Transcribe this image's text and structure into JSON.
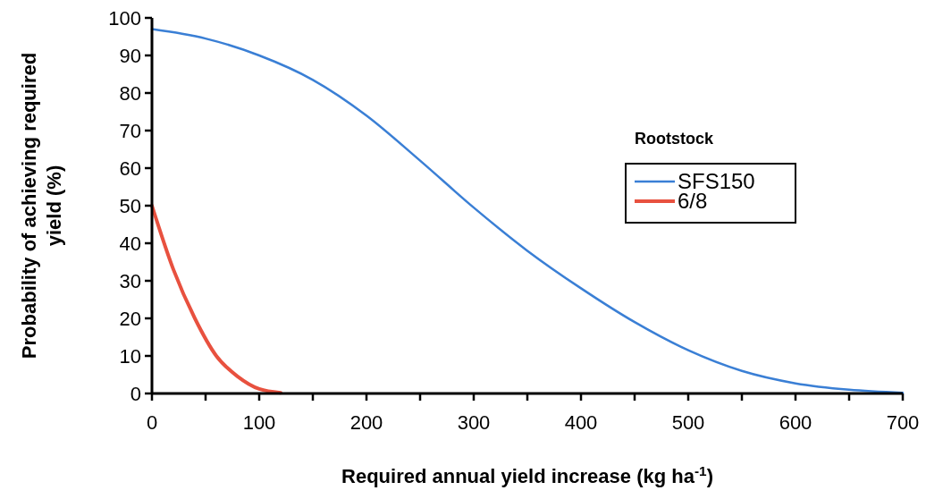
{
  "chart_data": {
    "type": "line",
    "xlabel": "Required annual yield increase (kg ha$^{-1}$)",
    "ylabel": "Probability of achieving required yield (%)",
    "legend_title": "Rootstock",
    "legend": "right",
    "grid": false,
    "line_style": "solid",
    "xlim": [
      0,
      700
    ],
    "ylim": [
      0,
      100
    ],
    "xticks": [
      0,
      {
        "value": 50,
        "label": null
      },
      100,
      {
        "value": 150,
        "label": null
      },
      200,
      {
        "value": 250,
        "label": null
      },
      300,
      {
        "value": 350,
        "label": null
      },
      400,
      {
        "value": 450,
        "label": null
      },
      500,
      {
        "value": 550,
        "label": null
      },
      600,
      {
        "value": 650,
        "label": null
      },
      700
    ],
    "yticks": [
      0,
      10,
      20,
      30,
      40,
      50,
      60,
      70,
      80,
      90,
      100
    ],
    "series": [
      {
        "name": "SFS150",
        "color": "#3a7fd5",
        "x": [
          0,
          50,
          100,
          150,
          200,
          250,
          300,
          350,
          400,
          450,
          500,
          550,
          600,
          650,
          700
        ],
        "values": [
          97,
          94.5,
          90,
          83.5,
          74,
          62,
          49.5,
          38,
          28,
          19,
          11.5,
          6,
          2.7,
          1,
          0.2
        ]
      },
      {
        "name": "6/8",
        "color": "#e8513f",
        "x": [
          0,
          20,
          40,
          60,
          80,
          100,
          120
        ],
        "values": [
          50,
          33,
          20,
          10,
          4.5,
          1.2,
          0.2
        ]
      }
    ]
  }
}
